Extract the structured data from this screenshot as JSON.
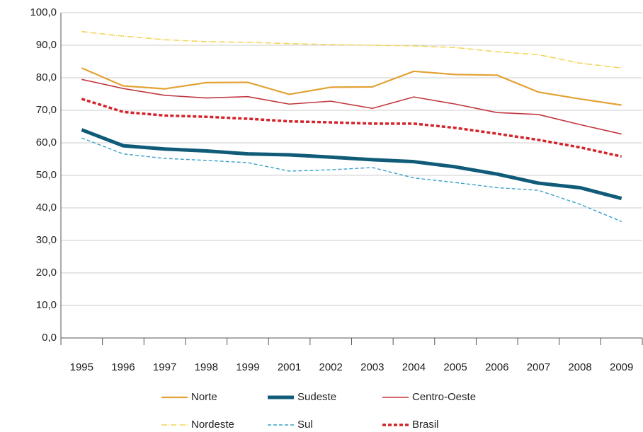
{
  "chart_data": {
    "type": "line",
    "categories": [
      "1995",
      "1996",
      "1997",
      "1998",
      "1999",
      "2001",
      "2002",
      "2003",
      "2004",
      "2005",
      "2006",
      "2007",
      "2008",
      "2009"
    ],
    "series": [
      {
        "name": "Norte",
        "color": "#e3a235",
        "dash": "solid",
        "width": 2.2,
        "values": [
          83.0,
          77.5,
          76.6,
          78.5,
          78.6,
          74.9,
          77.1,
          77.2,
          82.0,
          81.0,
          80.8,
          75.6,
          73.5,
          71.6
        ]
      },
      {
        "name": "Sudeste",
        "color": "#0f5b78",
        "dash": "solid",
        "width": 5,
        "values": [
          64.0,
          59.1,
          58.1,
          57.5,
          56.6,
          56.3,
          55.6,
          54.8,
          54.2,
          52.6,
          50.4,
          47.6,
          46.2,
          42.9
        ]
      },
      {
        "name": "Centro-Oeste",
        "color": "#c1373e",
        "dash": "solid",
        "width": 1.6,
        "values": [
          79.5,
          76.7,
          74.6,
          73.8,
          74.2,
          71.9,
          72.8,
          70.6,
          74.1,
          71.9,
          69.3,
          68.7,
          65.6,
          62.7
        ]
      },
      {
        "name": "Nordeste",
        "color": "#f2d45c",
        "dash": "dashdot",
        "width": 1.6,
        "values": [
          94.2,
          92.8,
          91.7,
          91.1,
          90.9,
          90.5,
          90.2,
          90.0,
          89.8,
          89.3,
          88.0,
          87.1,
          84.5,
          83.0
        ]
      },
      {
        "name": "Sul",
        "color": "#3aa0c8",
        "dash": "dashed",
        "width": 1.4,
        "values": [
          61.5,
          56.6,
          55.2,
          54.6,
          53.9,
          51.3,
          51.7,
          52.4,
          49.2,
          47.8,
          46.2,
          45.4,
          41.1,
          35.8
        ]
      },
      {
        "name": "Brasil",
        "color": "#d4232a",
        "dash": "dashed",
        "width": 3.5,
        "values": [
          73.5,
          69.5,
          68.4,
          68.0,
          67.4,
          66.6,
          66.3,
          65.9,
          65.9,
          64.6,
          62.8,
          60.9,
          58.6,
          55.8
        ]
      }
    ],
    "ylim": [
      0,
      100
    ],
    "yticks": [
      {
        "value": 0,
        "label": "0,0"
      },
      {
        "value": 10,
        "label": "10,0"
      },
      {
        "value": 20,
        "label": "20,0"
      },
      {
        "value": 30,
        "label": "30,0"
      },
      {
        "value": 40,
        "label": "40,0"
      },
      {
        "value": 50,
        "label": "50,0"
      },
      {
        "value": 60,
        "label": "60,0"
      },
      {
        "value": 70,
        "label": "70,0"
      },
      {
        "value": 80,
        "label": "80,0"
      },
      {
        "value": 90,
        "label": "90,0"
      },
      {
        "value": 100,
        "label": "100,0"
      }
    ],
    "grid": true,
    "legend": "bottom"
  }
}
